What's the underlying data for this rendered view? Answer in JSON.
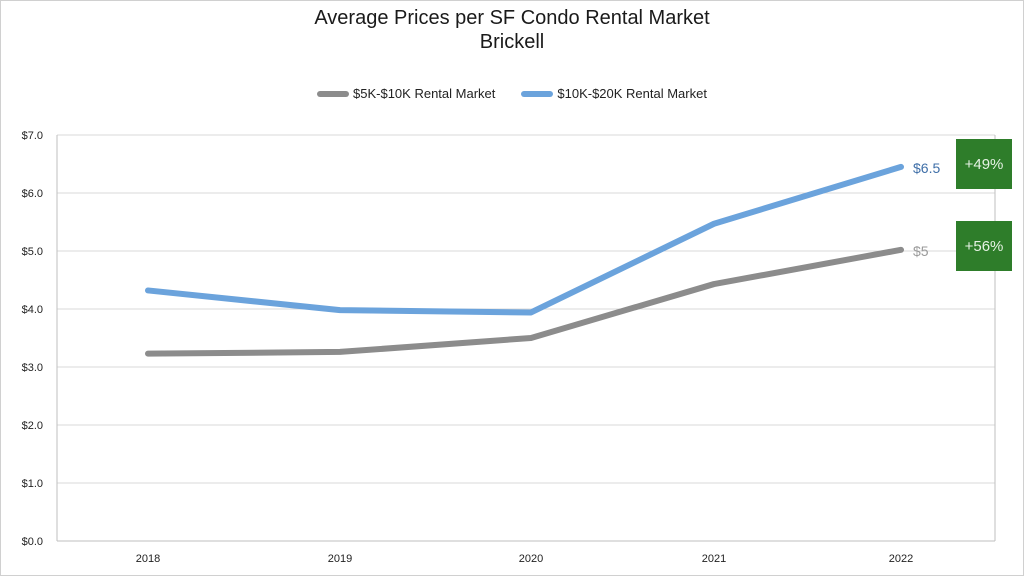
{
  "chart_data": {
    "type": "line",
    "title": "Average Prices per SF Condo Rental Market",
    "subtitle": "Brickell",
    "categories": [
      "2018",
      "2019",
      "2020",
      "2021",
      "2022"
    ],
    "series": [
      {
        "name": "$5K-$10K Rental Market",
        "values": [
          3.23,
          3.26,
          3.5,
          4.43,
          5.02
        ],
        "color": "#8c8c8c",
        "end_label": "$5",
        "change_label": "+56%"
      },
      {
        "name": "$10K-$20K Rental Market",
        "values": [
          4.32,
          3.98,
          3.94,
          5.47,
          6.45
        ],
        "color": "#6ba3dc",
        "end_label": "$6.5",
        "change_label": "+49%"
      }
    ],
    "ylim": [
      0,
      7
    ],
    "yticks": [
      "$0.0",
      "$1.0",
      "$2.0",
      "$3.0",
      "$4.0",
      "$5.0",
      "$6.0",
      "$7.0"
    ],
    "grid": true,
    "legend_position": "top",
    "callout_color": "#2e7d2a",
    "end_label_colors": [
      "#9a9a9a",
      "#3f6fa8"
    ]
  }
}
